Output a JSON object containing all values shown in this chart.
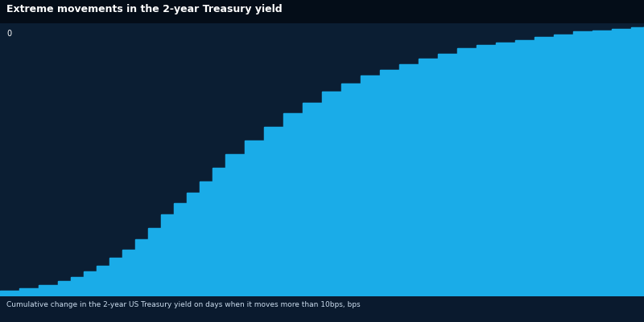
{
  "title": "Extreme movements in the 2-year Treasury yield",
  "subtitle": "Cumulative change in the 2-year US Treasury yield on days when it moves more than 10bps, bps",
  "background_color": "#040d18",
  "chart_bg_color": "#0b1e33",
  "fill_color": "#1aace8",
  "line_color": "#1aace8",
  "footer_bg": "#0a1a2e",
  "title_color": "#ffffff",
  "subtitle_color": "#ccddee",
  "ylim": [
    0,
    100
  ],
  "xlim": [
    0,
    100
  ],
  "steps": [
    [
      0,
      2
    ],
    [
      3,
      3
    ],
    [
      6,
      4
    ],
    [
      9,
      5.5
    ],
    [
      11,
      7
    ],
    [
      13,
      9
    ],
    [
      15,
      11
    ],
    [
      17,
      14
    ],
    [
      19,
      17
    ],
    [
      21,
      21
    ],
    [
      23,
      25
    ],
    [
      25,
      30
    ],
    [
      27,
      34
    ],
    [
      29,
      38
    ],
    [
      31,
      42
    ],
    [
      33,
      47
    ],
    [
      35,
      52
    ],
    [
      38,
      57
    ],
    [
      41,
      62
    ],
    [
      44,
      67
    ],
    [
      47,
      71
    ],
    [
      50,
      75
    ],
    [
      53,
      78
    ],
    [
      56,
      81
    ],
    [
      59,
      83
    ],
    [
      62,
      85
    ],
    [
      65,
      87
    ],
    [
      68,
      89
    ],
    [
      71,
      91
    ],
    [
      74,
      92
    ],
    [
      77,
      93
    ],
    [
      80,
      94
    ],
    [
      83,
      95
    ],
    [
      86,
      96
    ],
    [
      89,
      97
    ],
    [
      92,
      97.5
    ],
    [
      95,
      98
    ],
    [
      98,
      98.5
    ],
    [
      100,
      99
    ]
  ]
}
